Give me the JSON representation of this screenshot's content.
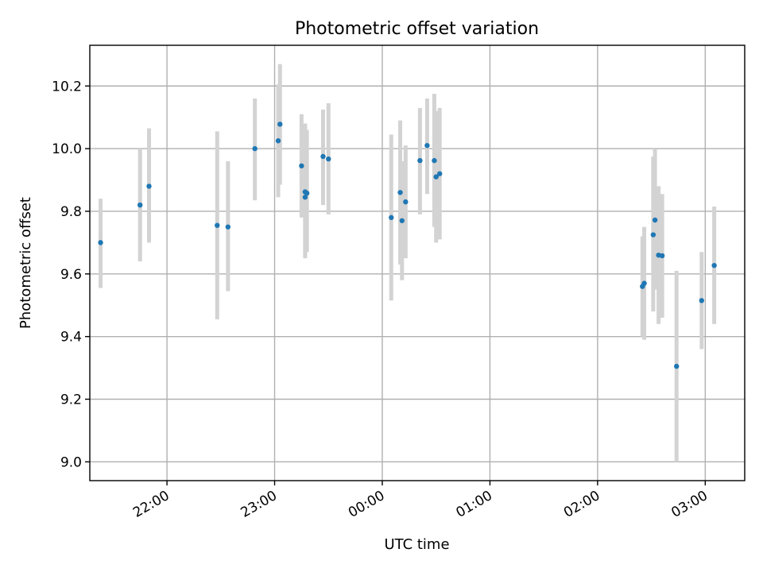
{
  "chart_data": {
    "type": "scatter",
    "title": "Photometric offset variation",
    "xlabel": "UTC time",
    "ylabel": "Photometric offset",
    "xlim": [
      "21:17",
      "03:22"
    ],
    "ylim": [
      8.94,
      10.33
    ],
    "x_ticks": [
      "22:00",
      "23:00",
      "00:00",
      "01:00",
      "02:00",
      "03:00"
    ],
    "y_ticks": [
      9.0,
      9.2,
      9.4,
      9.6,
      9.8,
      10.0,
      10.2
    ],
    "y_tick_labels": [
      "9.0",
      "9.2",
      "9.4",
      "9.6",
      "9.8",
      "10.0",
      "10.2"
    ],
    "grid": true,
    "marker_color": "#1f77b4",
    "errorbar_color": "#d3d3d3",
    "points": [
      {
        "t": "21:23",
        "y": 9.7,
        "lo": 9.555,
        "hi": 9.84
      },
      {
        "t": "21:45",
        "y": 9.82,
        "lo": 9.64,
        "hi": 10.0
      },
      {
        "t": "21:50",
        "y": 9.88,
        "lo": 9.7,
        "hi": 10.065
      },
      {
        "t": "22:28",
        "y": 9.755,
        "lo": 9.455,
        "hi": 10.055
      },
      {
        "t": "22:34",
        "y": 9.75,
        "lo": 9.545,
        "hi": 9.96
      },
      {
        "t": "22:49",
        "y": 10.0,
        "lo": 9.835,
        "hi": 10.16
      },
      {
        "t": "23:02",
        "y": 10.025,
        "lo": 9.845,
        "hi": 10.205
      },
      {
        "t": "23:03",
        "y": 10.078,
        "lo": 9.885,
        "hi": 10.27
      },
      {
        "t": "23:15",
        "y": 9.945,
        "lo": 9.78,
        "hi": 10.11
      },
      {
        "t": "23:17",
        "y": 9.862,
        "lo": 9.65,
        "hi": 10.08
      },
      {
        "t": "23:17",
        "y": 9.845,
        "lo": 9.66,
        "hi": 10.03
      },
      {
        "t": "23:18",
        "y": 9.858,
        "lo": 9.67,
        "hi": 10.06
      },
      {
        "t": "23:27",
        "y": 9.975,
        "lo": 9.82,
        "hi": 10.125
      },
      {
        "t": "23:30",
        "y": 9.967,
        "lo": 9.79,
        "hi": 10.145
      },
      {
        "t": "00:05",
        "y": 9.78,
        "lo": 9.515,
        "hi": 10.045
      },
      {
        "t": "00:10",
        "y": 9.86,
        "lo": 9.63,
        "hi": 10.09
      },
      {
        "t": "00:11",
        "y": 9.77,
        "lo": 9.58,
        "hi": 9.96
      },
      {
        "t": "00:13",
        "y": 9.83,
        "lo": 9.65,
        "hi": 10.01
      },
      {
        "t": "00:21",
        "y": 9.962,
        "lo": 9.79,
        "hi": 10.13
      },
      {
        "t": "00:25",
        "y": 10.01,
        "lo": 9.855,
        "hi": 10.16
      },
      {
        "t": "00:29",
        "y": 9.962,
        "lo": 9.75,
        "hi": 10.175
      },
      {
        "t": "00:30",
        "y": 9.91,
        "lo": 9.7,
        "hi": 10.12
      },
      {
        "t": "00:32",
        "y": 9.92,
        "lo": 9.71,
        "hi": 10.13
      },
      {
        "t": "02:25",
        "y": 9.56,
        "lo": 9.4,
        "hi": 9.72
      },
      {
        "t": "02:26",
        "y": 9.57,
        "lo": 9.39,
        "hi": 9.75
      },
      {
        "t": "02:31",
        "y": 9.725,
        "lo": 9.48,
        "hi": 9.975
      },
      {
        "t": "02:32",
        "y": 9.772,
        "lo": 9.55,
        "hi": 10.0
      },
      {
        "t": "02:34",
        "y": 9.66,
        "lo": 9.44,
        "hi": 9.88
      },
      {
        "t": "02:36",
        "y": 9.658,
        "lo": 9.46,
        "hi": 9.855
      },
      {
        "t": "02:44",
        "y": 9.305,
        "lo": 9.0,
        "hi": 9.61
      },
      {
        "t": "02:58",
        "y": 9.515,
        "lo": 9.36,
        "hi": 9.67
      },
      {
        "t": "03:05",
        "y": 9.627,
        "lo": 9.44,
        "hi": 9.815
      }
    ]
  }
}
